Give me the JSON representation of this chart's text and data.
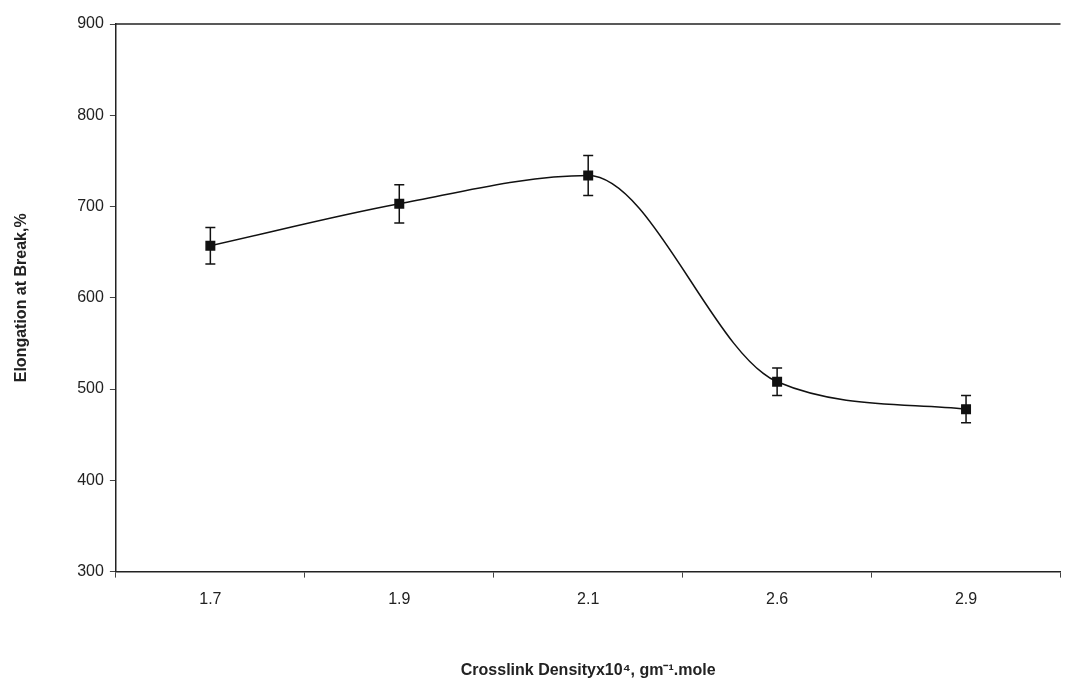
{
  "chart_data": {
    "type": "line",
    "xlabel": "Crosslink Densityx10⁴, gm⁻¹.mole",
    "ylabel": "Elongation at Break,%",
    "categories": [
      "1.7",
      "1.9",
      "2.1",
      "2.6",
      "2.9"
    ],
    "series": [
      {
        "color": "#111111",
        "values": [
          657,
          703,
          734,
          508,
          478
        ],
        "errors": [
          20,
          21,
          22,
          15,
          15
        ]
      }
    ],
    "ylim": [
      300,
      900
    ],
    "yticks": [
      300,
      400,
      500,
      600,
      700,
      800,
      900
    ],
    "grid": false,
    "legend": false,
    "marker": "square",
    "line_style": "solid"
  }
}
